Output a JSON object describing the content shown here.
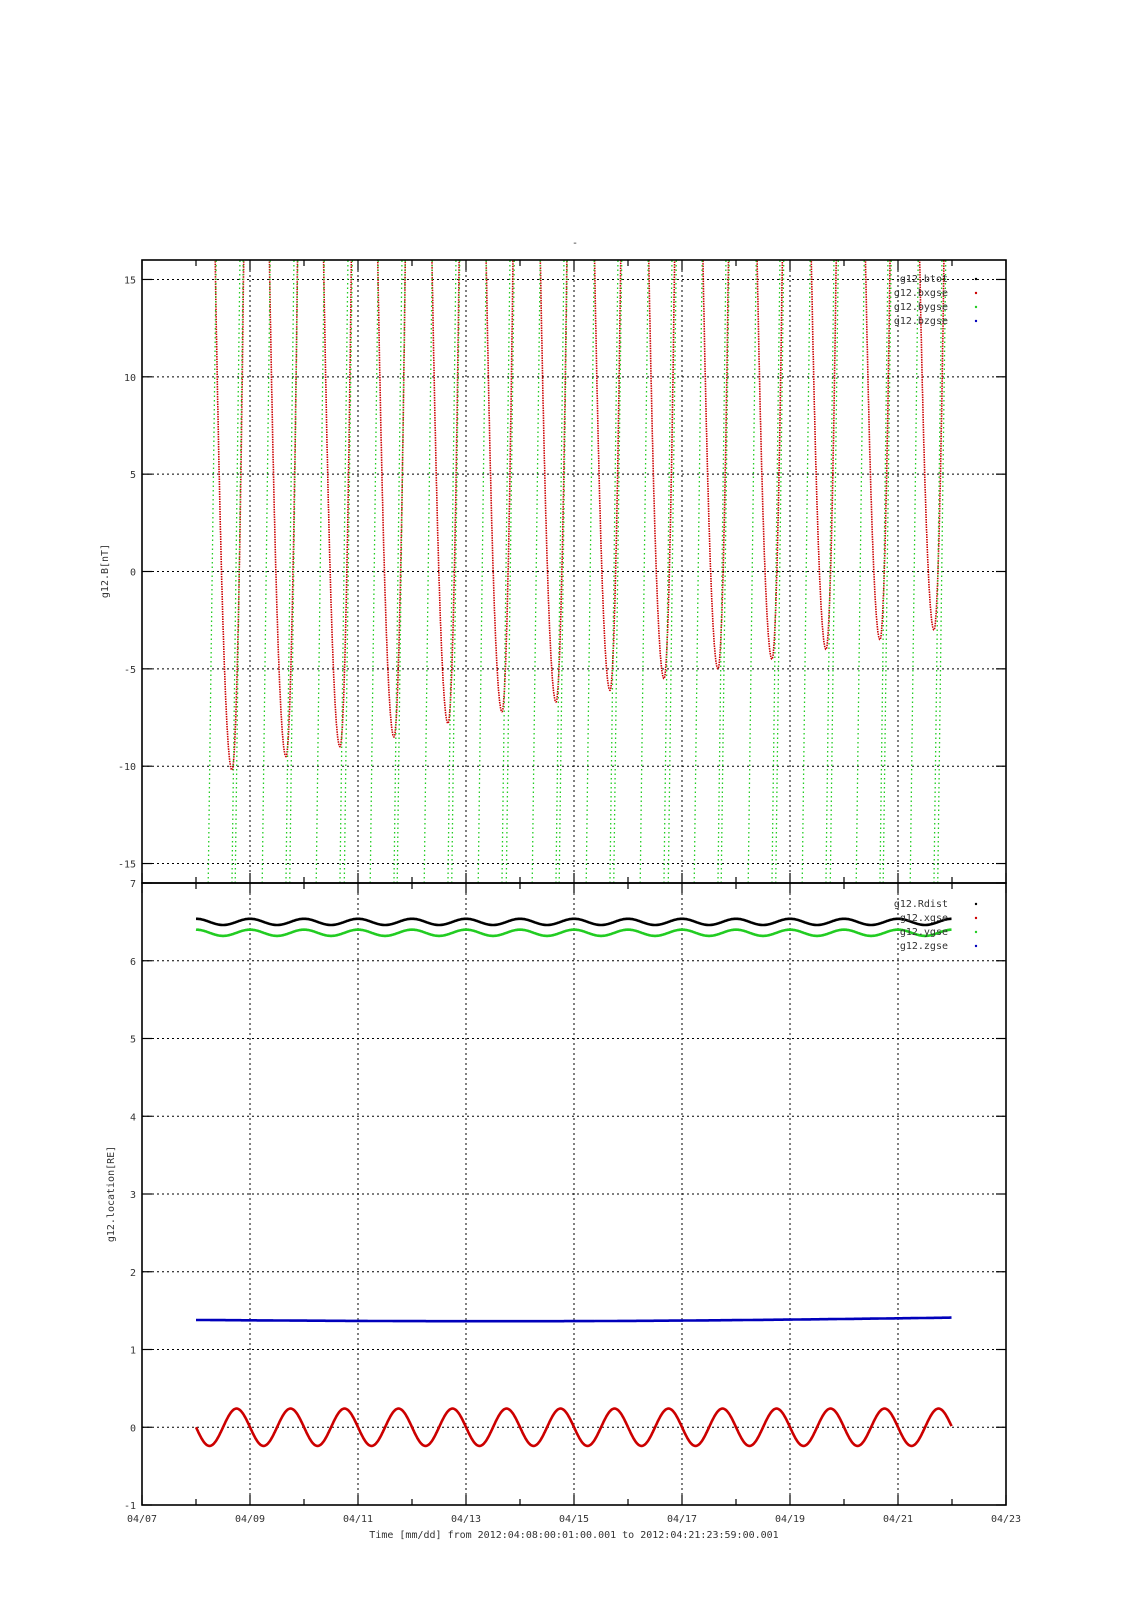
{
  "title": "-",
  "xlabel": "Time [mm/dd]  from 2012:04:08:00:01:00.001  to  2012:04:21:23:59:00.001",
  "x_tick_labels": [
    "04/07",
    "04/09",
    "04/11",
    "04/13",
    "04/15",
    "04/17",
    "04/19",
    "04/21",
    "04/23"
  ],
  "colors": {
    "black": "#000000",
    "red": "#cc0000",
    "green": "#22cc22",
    "blue": "#0000bb"
  },
  "chart_data": [
    {
      "type": "line",
      "ylabel": "g12.B[nT]",
      "ylim": [
        -16,
        16
      ],
      "y_ticks": [
        -15,
        -10,
        -5,
        0,
        5,
        10,
        15
      ],
      "xlim": [
        "2012-04-07",
        "2012-04-23"
      ],
      "grid": true,
      "legend_position": "top-right",
      "series": [
        {
          "name": "g12.btot",
          "color": "#000000",
          "note": "above plot range"
        },
        {
          "name": "g12.bxgse",
          "color": "#cc0000",
          "minima_dates": [
            "2012-04-08 16:00",
            "2012-04-09 16:00",
            "2012-04-10 16:00",
            "2012-04-11 16:00",
            "2012-04-12 16:00",
            "2012-04-13 16:00",
            "2012-04-14 16:00",
            "2012-04-15 16:00",
            "2012-04-16 16:00",
            "2012-04-17 16:00",
            "2012-04-18 16:00",
            "2012-04-19 16:00",
            "2012-04-20 16:00",
            "2012-04-21 16:00"
          ],
          "minima_values": [
            -10.2,
            -9.5,
            -9.0,
            -8.5,
            -7.8,
            -7.2,
            -6.7,
            -6.1,
            -5.5,
            -5.0,
            -4.5,
            -4.0,
            -3.5,
            -3.0
          ]
        },
        {
          "name": "g12.bygse",
          "color": "#22cc22",
          "note": "steep oscillation exceeding plot range"
        },
        {
          "name": "g12.bzgse",
          "color": "#0000bb",
          "note": "above plot range"
        }
      ]
    },
    {
      "type": "line",
      "ylabel": "g12.location[RE]",
      "ylim": [
        -1,
        7
      ],
      "y_ticks": [
        -1,
        0,
        1,
        2,
        3,
        4,
        5,
        6,
        7
      ],
      "xlim": [
        "2012-04-07",
        "2012-04-23"
      ],
      "x_range": [
        "2012-04-08 00:01",
        "2012-04-21 23:59"
      ],
      "grid": true,
      "legend_position": "top-right",
      "series": [
        {
          "name": "g12.Rdist",
          "color": "#000000",
          "mean": 6.5,
          "amplitude": 0.04,
          "period_days": 1
        },
        {
          "name": "g12.xgse",
          "color": "#cc0000",
          "mean": 0.0,
          "amplitude": 0.24,
          "period_days": 1
        },
        {
          "name": "g12.ygse",
          "color": "#22cc22",
          "mean": 6.36,
          "amplitude": 0.04,
          "period_days": 1
        },
        {
          "name": "g12.zgse",
          "color": "#0000bb",
          "start": 1.38,
          "end": 1.41,
          "dip": 0.03
        }
      ]
    }
  ]
}
